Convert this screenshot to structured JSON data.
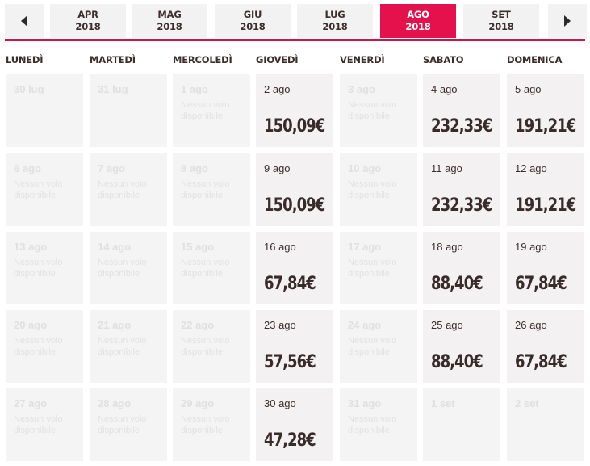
{
  "month_nav": {
    "prev_icon": "chevron-left-icon",
    "next_icon": "chevron-right-icon",
    "months": [
      {
        "month": "APR",
        "year": "2018",
        "active": false
      },
      {
        "month": "MAG",
        "year": "2018",
        "active": false
      },
      {
        "month": "GIU",
        "year": "2018",
        "active": false
      },
      {
        "month": "LUG",
        "year": "2018",
        "active": false
      },
      {
        "month": "AGO",
        "year": "2018",
        "active": true
      },
      {
        "month": "SET",
        "year": "2018",
        "active": false
      }
    ]
  },
  "weekdays": [
    "LUNEDÌ",
    "MARTEDÌ",
    "MERCOLEDÌ",
    "GIOVEDÌ",
    "VENERDÌ",
    "SABATO",
    "DOMENICA"
  ],
  "no_flight_text": "Nessun volo disponibile",
  "colors": {
    "accent": "#e5114d",
    "text": "#3d2e2e",
    "disabled_cell": "#f4f4f4",
    "available_cell": "#f3f1f1"
  },
  "weeks": [
    [
      {
        "label": "30 lug",
        "price": "",
        "note": ""
      },
      {
        "label": "31 lug",
        "price": "",
        "note": ""
      },
      {
        "label": "1 ago",
        "price": "",
        "note": "Nessun volo disponibile"
      },
      {
        "label": "2 ago",
        "price": "150,09€",
        "note": ""
      },
      {
        "label": "3 ago",
        "price": "",
        "note": "Nessun volo disponibile"
      },
      {
        "label": "4 ago",
        "price": "232,33€",
        "note": ""
      },
      {
        "label": "5 ago",
        "price": "191,21€",
        "note": ""
      }
    ],
    [
      {
        "label": "6 ago",
        "price": "",
        "note": "Nessun volo disponibile"
      },
      {
        "label": "7 ago",
        "price": "",
        "note": "Nessun volo disponibile"
      },
      {
        "label": "8 ago",
        "price": "",
        "note": "Nessun volo disponibile"
      },
      {
        "label": "9 ago",
        "price": "150,09€",
        "note": ""
      },
      {
        "label": "10 ago",
        "price": "",
        "note": "Nessun volo disponibile"
      },
      {
        "label": "11 ago",
        "price": "232,33€",
        "note": ""
      },
      {
        "label": "12 ago",
        "price": "191,21€",
        "note": ""
      }
    ],
    [
      {
        "label": "13 ago",
        "price": "",
        "note": "Nessun volo disponibile"
      },
      {
        "label": "14 ago",
        "price": "",
        "note": "Nessun volo disponibile"
      },
      {
        "label": "15 ago",
        "price": "",
        "note": "Nessun volo disponibile"
      },
      {
        "label": "16 ago",
        "price": "67,84€",
        "note": ""
      },
      {
        "label": "17 ago",
        "price": "",
        "note": "Nessun volo disponibile"
      },
      {
        "label": "18 ago",
        "price": "88,40€",
        "note": ""
      },
      {
        "label": "19 ago",
        "price": "67,84€",
        "note": ""
      }
    ],
    [
      {
        "label": "20 ago",
        "price": "",
        "note": "Nessun volo disponibile"
      },
      {
        "label": "21 ago",
        "price": "",
        "note": "Nessun volo disponibile"
      },
      {
        "label": "22 ago",
        "price": "",
        "note": "Nessun volo disponibile"
      },
      {
        "label": "23 ago",
        "price": "57,56€",
        "note": ""
      },
      {
        "label": "24 ago",
        "price": "",
        "note": "Nessun volo disponibile"
      },
      {
        "label": "25 ago",
        "price": "88,40€",
        "note": ""
      },
      {
        "label": "26 ago",
        "price": "67,84€",
        "note": ""
      }
    ],
    [
      {
        "label": "27 ago",
        "price": "",
        "note": "Nessun volo disponibile"
      },
      {
        "label": "28 ago",
        "price": "",
        "note": "Nessun volo disponibile"
      },
      {
        "label": "29 ago",
        "price": "",
        "note": "Nessun volo disponibile"
      },
      {
        "label": "30 ago",
        "price": "47,28€",
        "note": ""
      },
      {
        "label": "31 ago",
        "price": "",
        "note": "Nessun volo disponibile"
      },
      {
        "label": "1 set",
        "price": "",
        "note": ""
      },
      {
        "label": "2 set",
        "price": "",
        "note": ""
      }
    ]
  ]
}
